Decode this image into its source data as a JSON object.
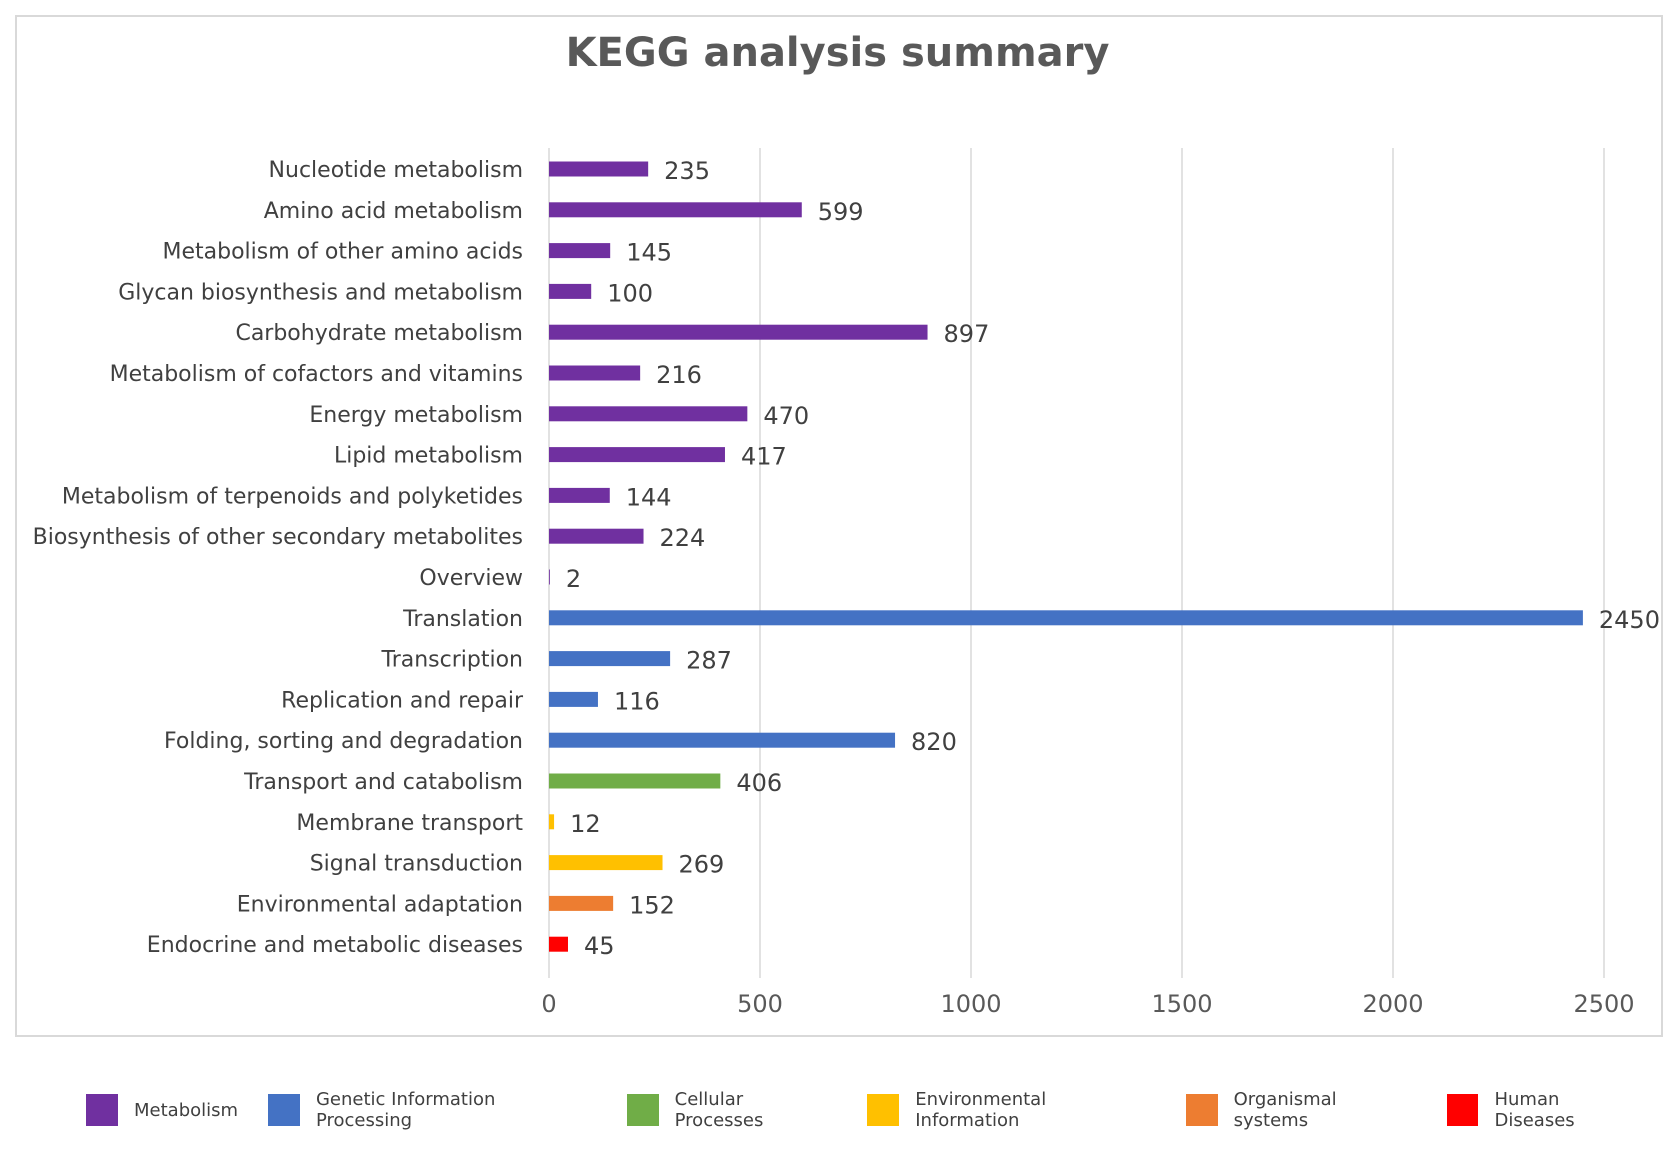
{
  "chart_data": {
    "type": "bar",
    "orientation": "horizontal",
    "title": "KEGG analysis summary",
    "xlabel": "",
    "ylabel": "",
    "xlim": [
      0,
      2500
    ],
    "x_ticks": [
      0,
      500,
      1000,
      1500,
      2000,
      2500
    ],
    "grid": "vertical",
    "legend_position": "bottom",
    "categories": [
      "Nucleotide metabolism",
      "Amino acid metabolism",
      "Metabolism of other amino acids",
      "Glycan biosynthesis and metabolism",
      "Carbohydrate metabolism",
      "Metabolism of cofactors and vitamins",
      "Energy metabolism",
      "Lipid metabolism",
      "Metabolism of terpenoids and polyketides",
      "Biosynthesis of other secondary metabolites",
      "Overview",
      "Translation",
      "Transcription",
      "Replication and repair",
      "Folding, sorting and degradation",
      "Transport and catabolism",
      "Membrane transport",
      "Signal transduction",
      "Environmental adaptation",
      "Endocrine and metabolic diseases"
    ],
    "values": [
      235,
      599,
      145,
      100,
      897,
      216,
      470,
      417,
      144,
      224,
      2,
      2450,
      287,
      116,
      820,
      406,
      12,
      269,
      152,
      45
    ],
    "groups": [
      "Metabolism",
      "Metabolism",
      "Metabolism",
      "Metabolism",
      "Metabolism",
      "Metabolism",
      "Metabolism",
      "Metabolism",
      "Metabolism",
      "Metabolism",
      "Metabolism",
      "Genetic Information Processing",
      "Genetic Information Processing",
      "Genetic Information Processing",
      "Genetic Information Processing",
      "Cellular Processes",
      "Environmental Information",
      "Environmental Information",
      "Organismal systems",
      "Human Diseases"
    ],
    "legend": [
      {
        "name": "Metabolism",
        "color": "#7030a0"
      },
      {
        "name": "Genetic Information Processing",
        "color": "#4472c4"
      },
      {
        "name": "Cellular Processes",
        "color": "#70ad47"
      },
      {
        "name": "Environmental Information",
        "color": "#ffc000"
      },
      {
        "name": "Organismal systems",
        "color": "#ed7d31"
      },
      {
        "name": "Human Diseases",
        "color": "#ff0000"
      }
    ]
  }
}
